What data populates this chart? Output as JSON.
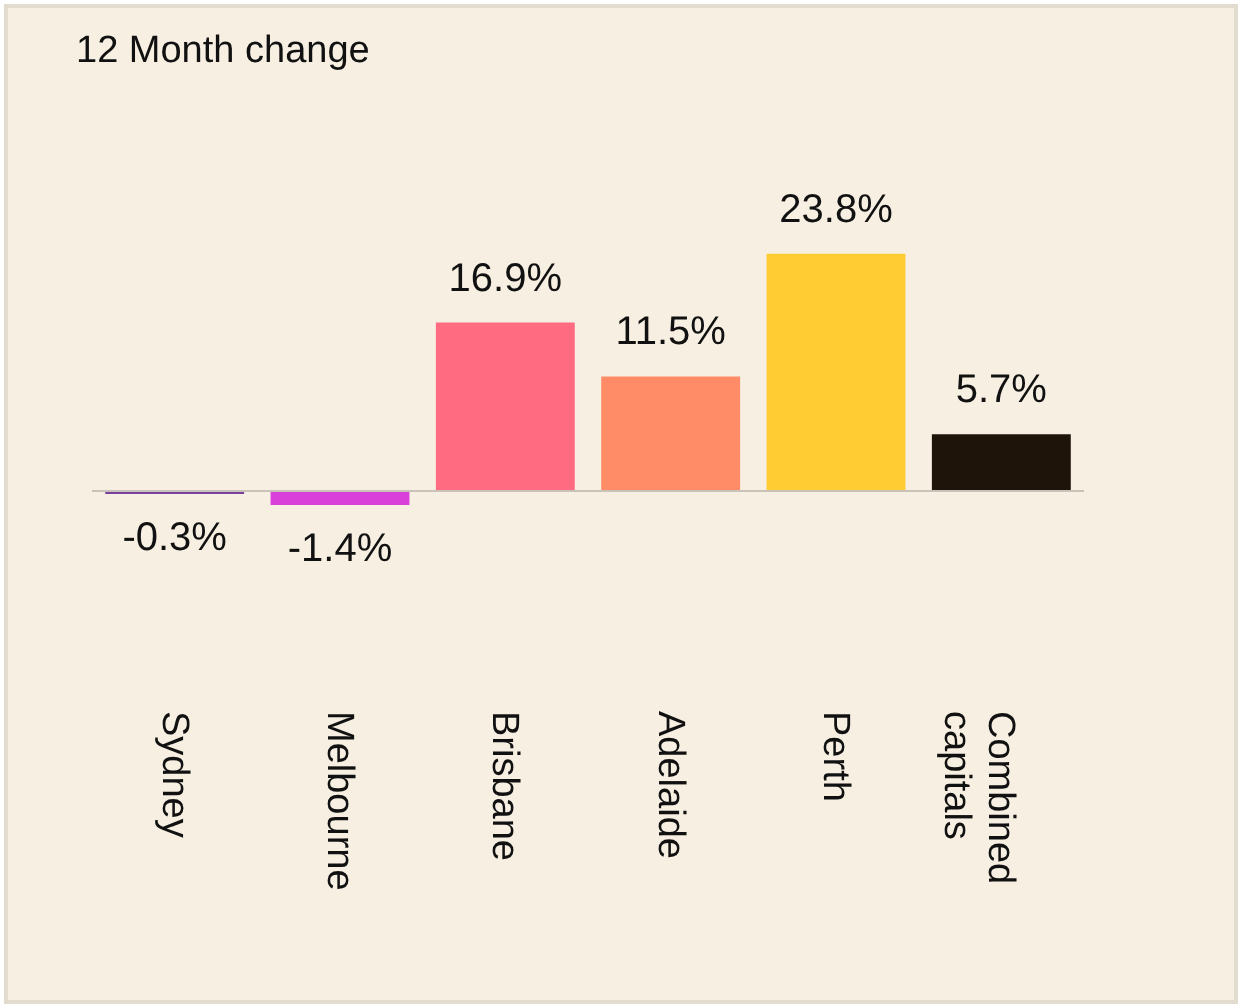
{
  "chart_data": {
    "type": "bar",
    "title": "12 Month change",
    "categories": [
      "Sydney",
      "Melbourne",
      "Brisbane",
      "Adelaide",
      "Perth",
      "Combined capitals"
    ],
    "values": [
      -0.3,
      -1.4,
      16.9,
      11.5,
      23.8,
      5.7
    ],
    "colors": [
      "#7a3f9c",
      "#d940d9",
      "#ff6b81",
      "#ff8c66",
      "#ffcc33",
      "#1e140a"
    ],
    "value_labels": [
      "-0.3%",
      "-1.4%",
      "16.9%",
      "11.5%",
      "23.8%",
      "5.7%"
    ],
    "grid": false,
    "legend": false
  }
}
